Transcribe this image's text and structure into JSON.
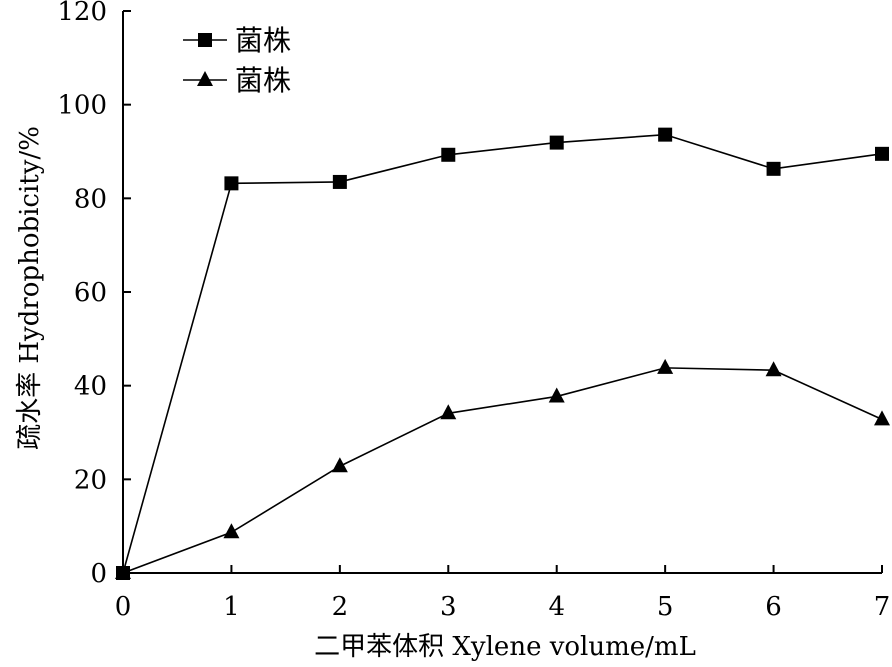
{
  "chart_data": {
    "type": "line",
    "xlabel": "二甲苯体积 Xylene volume/mL",
    "ylabel": "疏水率 Hydrophobicity/%",
    "xlim": [
      0,
      7
    ],
    "ylim": [
      0,
      120
    ],
    "x_ticks": [
      0,
      1,
      2,
      3,
      4,
      5,
      6,
      7
    ],
    "y_ticks": [
      0,
      20,
      40,
      60,
      80,
      100,
      120
    ],
    "grid": false,
    "legend_position": "top-left",
    "x": [
      0,
      1,
      2,
      3,
      4,
      5,
      6,
      7
    ],
    "series": [
      {
        "name": "菌株",
        "marker": "square",
        "color": "#000000",
        "values": [
          0,
          83.2,
          83.5,
          89.3,
          91.9,
          93.6,
          86.3,
          89.5
        ]
      },
      {
        "name": "菌株",
        "marker": "triangle",
        "color": "#000000",
        "values": [
          0,
          8.7,
          22.8,
          34.1,
          37.7,
          43.8,
          43.3,
          32.8
        ]
      }
    ]
  }
}
